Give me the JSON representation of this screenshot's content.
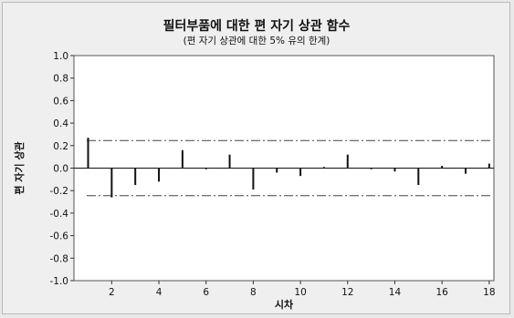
{
  "chart_data": {
    "type": "bar",
    "title": "필터부품에 대한 편 자기 상관 함수",
    "subtitle": "(편 자기 상관에 대한 5% 유의 한계)",
    "xlabel": "시차",
    "ylabel": "편 자기 상관",
    "xlim": [
      0.4,
      18.2
    ],
    "ylim": [
      -1.0,
      1.0
    ],
    "xticks": [
      "2",
      "4",
      "6",
      "8",
      "10",
      "12",
      "14",
      "16",
      "18"
    ],
    "yticks": [
      "1.0",
      "0.8",
      "0.6",
      "0.4",
      "0.2",
      "0.0",
      "-0.2",
      "-0.4",
      "-0.6",
      "-0.8",
      "-1.0"
    ],
    "significance_limit": 0.245,
    "grid": false,
    "colors": {
      "stem": "#111111",
      "limit_line": "#444444",
      "plot_bg": "#ffffff"
    },
    "series": [
      {
        "lags": [
          1,
          2,
          3,
          4,
          5,
          6,
          7,
          8,
          9,
          10,
          11,
          12,
          13,
          14,
          15,
          16,
          17,
          18
        ],
        "values": [
          0.27,
          -0.26,
          -0.15,
          -0.12,
          0.16,
          -0.01,
          0.12,
          -0.19,
          -0.04,
          -0.07,
          0.01,
          0.12,
          -0.01,
          -0.03,
          -0.15,
          0.02,
          -0.05,
          0.04
        ]
      }
    ]
  }
}
